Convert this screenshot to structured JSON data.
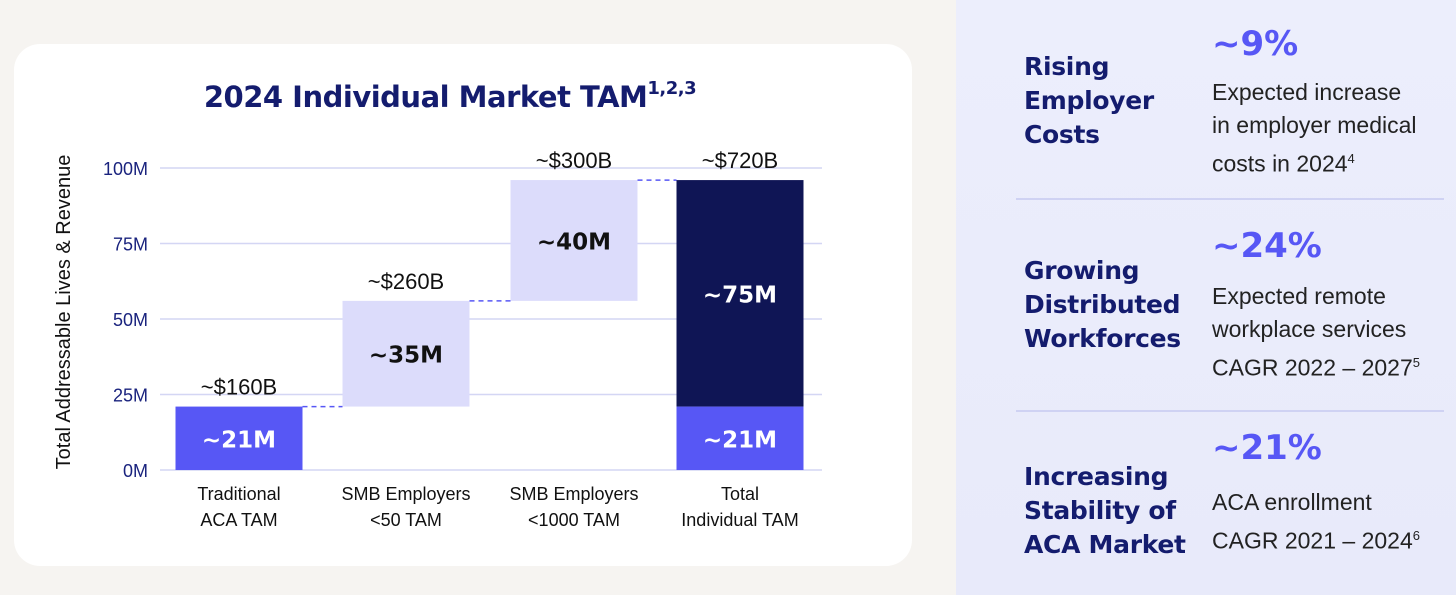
{
  "chart_data": {
    "type": "bar",
    "title": "2024 Individual Market TAM",
    "title_superscript": "1,2,3",
    "ylabel": "Total Addressable Lives & Revenue",
    "ylim": [
      0,
      100
    ],
    "y_ticks": [
      "0M",
      "25M",
      "50M",
      "75M",
      "100M"
    ],
    "y_tick_values": [
      0,
      25,
      50,
      75,
      100
    ],
    "grid": true,
    "categories": [
      [
        "Traditional",
        "ACA TAM"
      ],
      [
        "SMB Employers",
        "<50 TAM"
      ],
      [
        "SMB Employers",
        "<1000 TAM"
      ],
      [
        "Total",
        "Individual TAM"
      ]
    ],
    "bars": [
      {
        "base": 0,
        "value": 21,
        "label": "~21M",
        "top_label": "~$160B",
        "color": "#5757f5",
        "text_color": "#ffffff"
      },
      {
        "base": 21,
        "value": 35,
        "label": "~35M",
        "top_label": "~$260B",
        "color": "#dcdcfb",
        "text_color": "#111111"
      },
      {
        "base": 56,
        "value": 40,
        "label": "~40M",
        "top_label": "~$300B",
        "color": "#dcdcfb",
        "text_color": "#111111"
      },
      {
        "base": 21,
        "value": 75,
        "label": "~75M",
        "top_label": "~$720B",
        "color": "#0f1555",
        "text_color": "#ffffff"
      },
      {
        "base": 0,
        "value": 21,
        "label": "~21M",
        "top_label": "",
        "color": "#5757f5",
        "text_color": "#ffffff",
        "category_index": 3
      }
    ]
  },
  "panel": {
    "stats": [
      {
        "heading": [
          "Rising",
          "Employer",
          "Costs"
        ],
        "value": "~9%",
        "desc": [
          "Expected increase",
          "in employer medical",
          "costs in 2024"
        ],
        "sup": "4"
      },
      {
        "heading": [
          "Growing",
          "Distributed",
          "Workforces"
        ],
        "value": "~24%",
        "desc": [
          "Expected remote",
          "workplace services",
          "CAGR 2022 – 2027"
        ],
        "sup": "5"
      },
      {
        "heading": [
          "Increasing",
          "Stability of",
          "ACA Market"
        ],
        "value": "~21%",
        "desc": [
          "ACA enrollment",
          "CAGR 2021 – 2024"
        ],
        "sup": "6"
      }
    ]
  }
}
